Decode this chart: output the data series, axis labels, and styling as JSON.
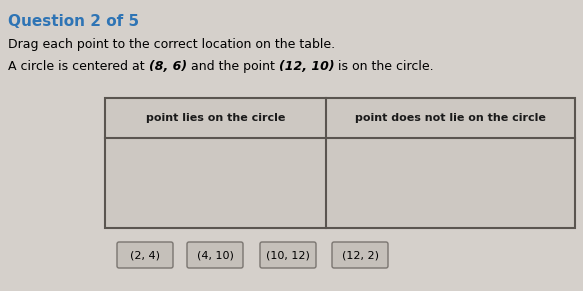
{
  "title": "Question 2 of 5",
  "title_color": "#2e74b5",
  "title_fontsize": 11,
  "instruction": "Drag each point to the correct location on the table.",
  "instruction_fontsize": 9,
  "problem_plain1": "A circle is centered at ",
  "problem_bold1": "(8, 6)",
  "problem_plain2": " and the point ",
  "problem_bold2": "(12, 10)",
  "problem_plain3": " is on the circle.",
  "problem_fontsize": 9,
  "col1_header": "point lies on the circle",
  "col2_header": "point does not lie on the circle",
  "header_fontsize": 8,
  "header_color": "#1a1a1a",
  "points": [
    "(2, 4)",
    "(4, 10)",
    "(10, 12)",
    "(12, 2)"
  ],
  "points_fontsize": 8,
  "background_color": "#d5d0cb",
  "table_bg": "#cdc8c2",
  "table_border_color": "#5a5550",
  "fig_width": 5.83,
  "fig_height": 2.91,
  "dpi": 100
}
